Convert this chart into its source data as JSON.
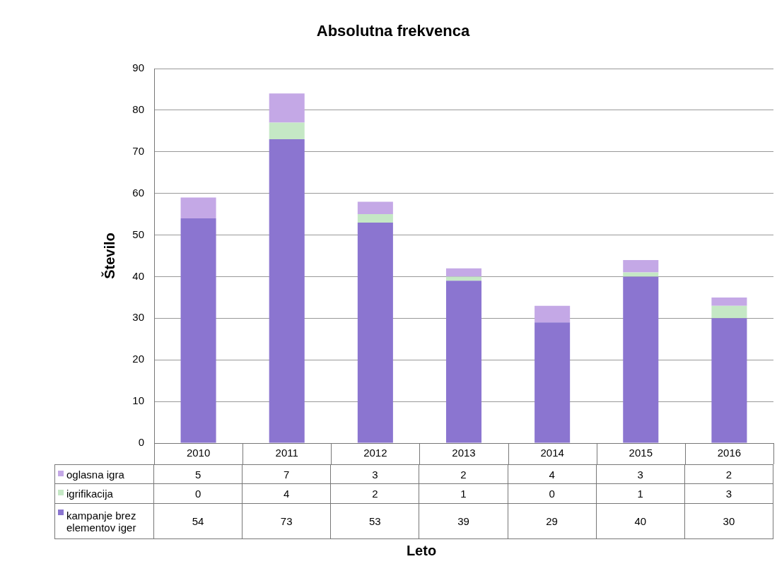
{
  "chart_data": {
    "type": "bar",
    "title": "Absolutna frekvenca",
    "annotations": [
      "Leto"
    ],
    "ylabel": "Število",
    "categories": [
      "2010",
      "2011",
      "2012",
      "2013",
      "2014",
      "2015",
      "2016"
    ],
    "series": [
      {
        "name": "kampanje brez elementov iger",
        "color": "#8b75d0",
        "values": [
          54,
          73,
          53,
          39,
          29,
          40,
          30
        ]
      },
      {
        "name": "igrifikacija",
        "color": "#c5e8c5",
        "values": [
          0,
          4,
          2,
          1,
          0,
          1,
          3
        ]
      },
      {
        "name": "oglasna igra",
        "color": "#c4a8e6",
        "values": [
          5,
          7,
          3,
          2,
          4,
          3,
          2
        ]
      }
    ],
    "stacked": true,
    "ylim": [
      0,
      90
    ],
    "yticks": [
      0,
      10,
      20,
      30,
      40,
      50,
      60,
      70,
      80,
      90
    ],
    "grid": "y",
    "legend": "bottom left",
    "data_labels": true
  }
}
